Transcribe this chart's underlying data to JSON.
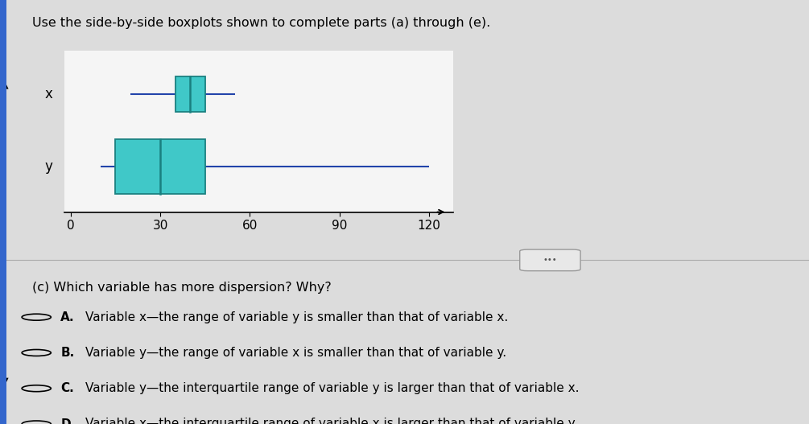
{
  "title": "Use the side-by-side boxplots shown to complete parts (a) through (e).",
  "x_boxplot": {
    "whisker_low": 20,
    "q1": 35,
    "median": 40,
    "q3": 45,
    "whisker_high": 55
  },
  "y_boxplot": {
    "whisker_low": 10,
    "q1": 15,
    "median": 30,
    "q3": 45,
    "whisker_high": 120
  },
  "box_color": "#40c8c8",
  "box_edge_color": "#1a8080",
  "whisker_color": "#2244aa",
  "axis_min": -2,
  "axis_max": 128,
  "tick_positions": [
    0,
    30,
    60,
    90,
    120
  ],
  "question_text": "(c) Which variable has more dispersion? Why?",
  "options": [
    [
      "A.",
      "Variable x—the range of variable y is smaller than that of variable x."
    ],
    [
      "B.",
      "Variable y—the range of variable x is smaller than that of variable y."
    ],
    [
      "C.",
      "Variable y—the interquartile range of variable y is larger than that of variable x."
    ],
    [
      "D.",
      "Variable x—the interquartile range of variable x is larger than that of variable y."
    ]
  ],
  "bg_color": "#dcdcdc",
  "plot_bg": "#dcdcdc",
  "white_bg": "#f5f5f5",
  "separator_color": "#aaaaaa"
}
